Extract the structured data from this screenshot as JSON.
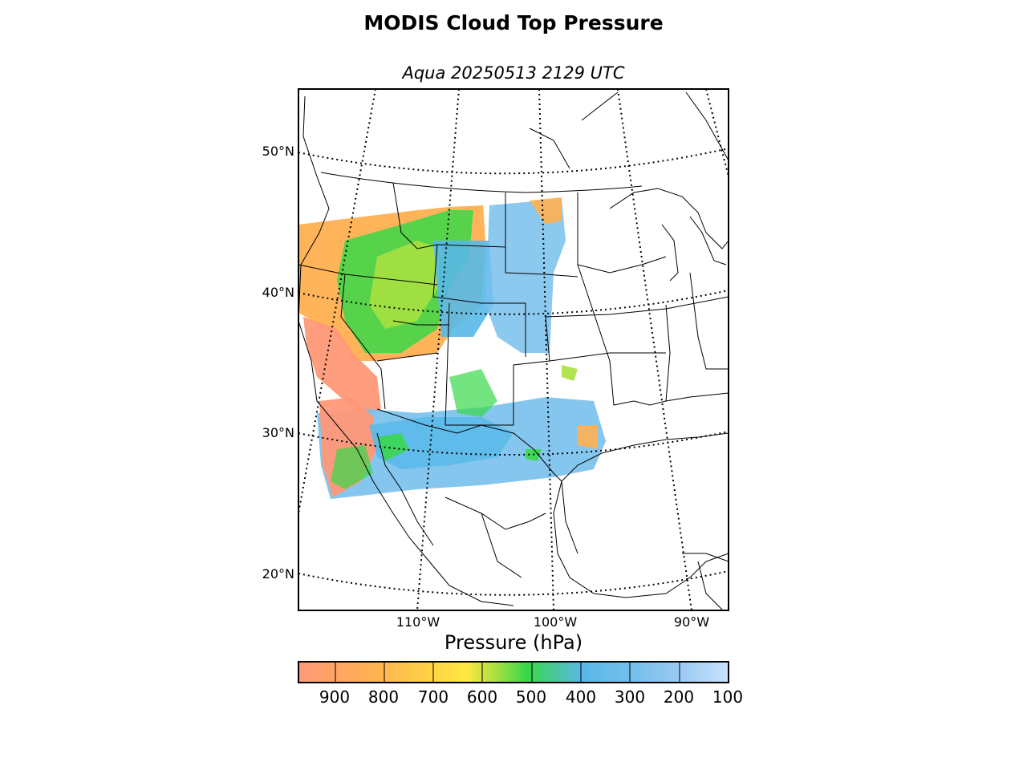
{
  "title": "MODIS Cloud Top Pressure",
  "subtitle": "Aqua 20250513 2129 UTC",
  "map": {
    "projection": "lambert-conformal",
    "latitude_labels": [
      "50°N",
      "40°N",
      "30°N",
      "20°N"
    ],
    "longitude_labels": [
      "110°W",
      "100°W",
      "90°W"
    ],
    "graticule": "dotted",
    "boundaries": [
      "coastlines",
      "country-borders",
      "state-borders"
    ]
  },
  "colorbar": {
    "label": "Pressure (hPa)",
    "ticks": [
      "900",
      "800",
      "700",
      "600",
      "500",
      "400",
      "300",
      "200",
      "100"
    ],
    "range_hpa": [
      975,
      100
    ],
    "colors": {
      "900": "#ff9878",
      "800": "#ffb050",
      "700": "#ffe840",
      "600": "#a8e040",
      "500": "#38d848",
      "400": "#58b8e8",
      "300": "#78c0ec",
      "200": "#a0ccf4",
      "100": "#c8e2fc"
    }
  }
}
